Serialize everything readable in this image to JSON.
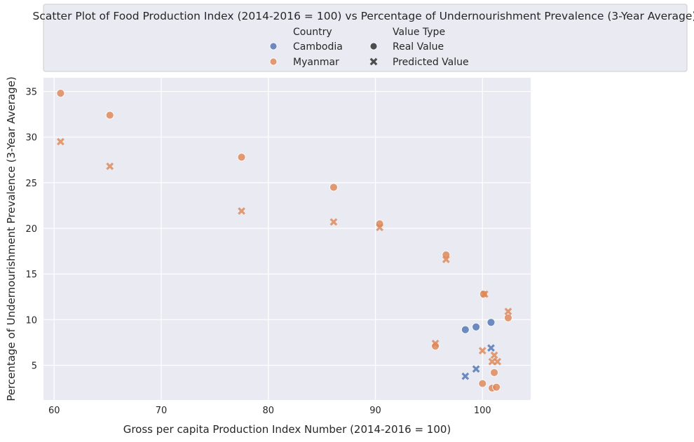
{
  "chart_data": {
    "type": "scatter",
    "title": "Scatter Plot of Food Production Index (2014-2016 = 100) vs Percentage of Undernourishment Prevalence (3-Year Average)",
    "xlabel": "Gross per capita Production Index Number (2014-2016 = 100)",
    "ylabel": "Percentage of Undernourishment Prevalence (3-Year Average)",
    "xlim": [
      59,
      104.5
    ],
    "ylim": [
      1.2,
      36.5
    ],
    "xticks": [
      60,
      70,
      80,
      90,
      100
    ],
    "yticks": [
      5,
      10,
      15,
      20,
      25,
      30,
      35
    ],
    "grid": true,
    "legend": {
      "placement": "top-center",
      "hue_title": "Country",
      "style_title": "Value Type",
      "hue_entries": [
        "Cambodia",
        "Myanmar"
      ],
      "style_entries": [
        "Real Value",
        "Predicted Value"
      ]
    },
    "series": [
      {
        "name": "Cambodia",
        "value_type": "Real Value",
        "marker": "circle",
        "color": "#4c72b0",
        "points": [
          [
            98.4,
            8.9
          ],
          [
            99.4,
            9.2
          ],
          [
            100.8,
            9.7
          ]
        ]
      },
      {
        "name": "Cambodia",
        "value_type": "Predicted Value",
        "marker": "x",
        "color": "#4c72b0",
        "points": [
          [
            98.4,
            3.8
          ],
          [
            99.4,
            4.6
          ],
          [
            100.8,
            6.9
          ]
        ]
      },
      {
        "name": "Myanmar",
        "value_type": "Real Value",
        "marker": "circle",
        "color": "#dd8452",
        "points": [
          [
            60.6,
            34.8
          ],
          [
            65.2,
            32.4
          ],
          [
            77.5,
            27.8
          ],
          [
            86.1,
            24.5
          ],
          [
            90.4,
            20.5
          ],
          [
            96.6,
            17.1
          ],
          [
            100.1,
            12.8
          ],
          [
            102.4,
            10.2
          ],
          [
            95.6,
            7.1
          ],
          [
            101.1,
            4.2
          ],
          [
            100.0,
            3.0
          ],
          [
            100.9,
            2.5
          ],
          [
            101.3,
            2.6
          ]
        ]
      },
      {
        "name": "Myanmar",
        "value_type": "Predicted Value",
        "marker": "x",
        "color": "#dd8452",
        "points": [
          [
            60.6,
            29.5
          ],
          [
            65.2,
            26.8
          ],
          [
            77.5,
            21.9
          ],
          [
            86.1,
            20.7
          ],
          [
            90.4,
            20.1
          ],
          [
            96.6,
            16.6
          ],
          [
            100.2,
            12.8
          ],
          [
            102.4,
            10.9
          ],
          [
            95.6,
            7.4
          ],
          [
            100.0,
            6.6
          ],
          [
            101.1,
            6.1
          ],
          [
            100.9,
            5.4
          ],
          [
            101.4,
            5.4
          ]
        ]
      }
    ]
  }
}
